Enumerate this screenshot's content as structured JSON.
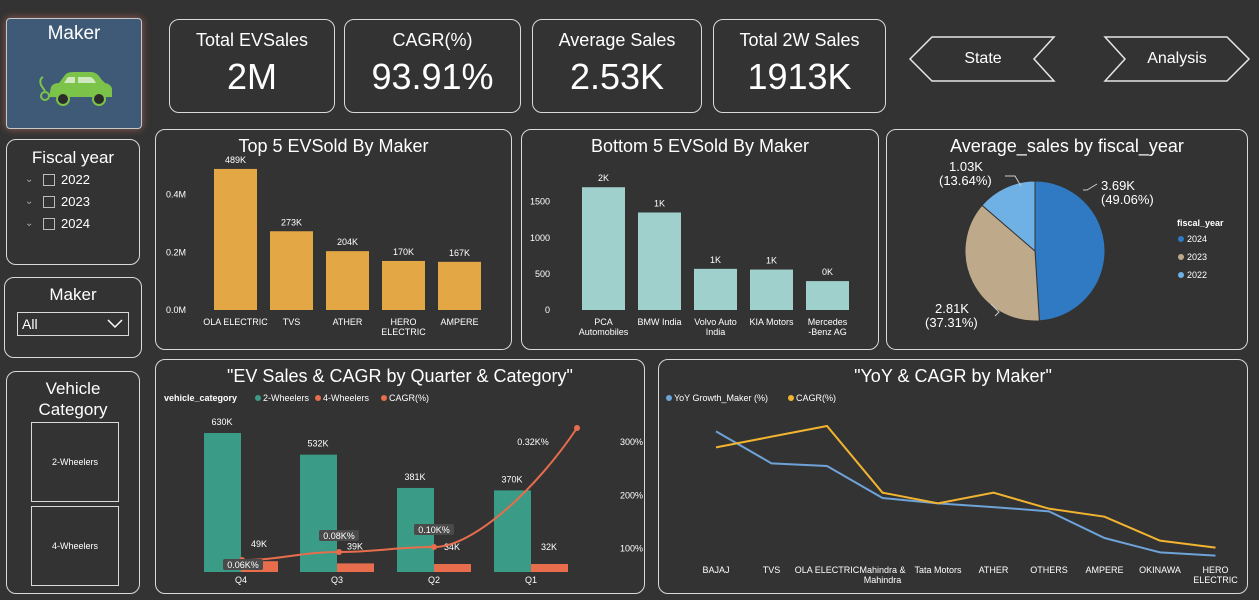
{
  "sidebar": {
    "maker_card_title": "Maker",
    "fiscal_year_title": "Fiscal year",
    "fiscal_years": [
      "2022",
      "2023",
      "2024"
    ],
    "maker_filter_title": "Maker",
    "maker_filter_value": "All",
    "vehicle_category_title": "Vehicle Category",
    "vehicle_categories": [
      "2-Wheelers",
      "4-Wheelers"
    ]
  },
  "kpis": [
    {
      "label": "Total EVSales",
      "value": "2M"
    },
    {
      "label": "CAGR(%)",
      "value": "93.91%"
    },
    {
      "label": "Average Sales",
      "value": "2.53K"
    },
    {
      "label": "Total 2W Sales",
      "value": "1913K"
    }
  ],
  "nav": {
    "state_label": "State",
    "analysis_label": "Analysis"
  },
  "colors": {
    "gold": "#e3a746",
    "teal": "#a0d0cc",
    "green": "#3a9b86",
    "orange": "#e86d4c",
    "blue": "#2f7ac2",
    "tan": "#bfa98b",
    "lightblue": "#6fb1e4",
    "lineblue": "#6ea3d8",
    "lineyellow": "#f2b430"
  },
  "chart_data": [
    {
      "type": "bar",
      "title": "Top 5 EVSold By Maker",
      "categories": [
        "OLA ELECTRIC",
        "TVS",
        "ATHER",
        "HERO ELECTRIC",
        "AMPERE"
      ],
      "values": [
        489000,
        273000,
        204000,
        170000,
        167000
      ],
      "data_labels": [
        "489K",
        "273K",
        "204K",
        "170K",
        "167K"
      ],
      "yticks": [
        "0.0M",
        "0.2M",
        "0.4M"
      ],
      "ylim": [
        0,
        520000
      ]
    },
    {
      "type": "bar",
      "title": "Bottom 5 EVSold By Maker",
      "categories": [
        "PCA Automobiles",
        "BMW India",
        "Volvo Auto India",
        "KIA Motors",
        "Mercedes -Benz AG"
      ],
      "values": [
        1700,
        1350,
        570,
        560,
        400
      ],
      "data_labels": [
        "2K",
        "1K",
        "1K",
        "1K",
        "0K"
      ],
      "yticks": [
        "0",
        "500",
        "1000",
        "1500"
      ],
      "ylim": [
        0,
        1800
      ]
    },
    {
      "type": "pie",
      "title": "Average_sales by fiscal_year",
      "legend_title": "fiscal_year",
      "slices": [
        {
          "label": "2024",
          "value": 3.69,
          "text": "3.69K",
          "pct": "(49.06%)"
        },
        {
          "label": "2023",
          "value": 2.81,
          "text": "2.81K",
          "pct": "(37.31%)"
        },
        {
          "label": "2022",
          "value": 1.03,
          "text": "1.03K",
          "pct": "(13.64%)"
        }
      ]
    },
    {
      "type": "bar",
      "title": "\"EV Sales & CAGR by Quarter & Category\"",
      "legend_title": "vehicle_category",
      "categories": [
        "Q4",
        "Q3",
        "Q2",
        "Q1"
      ],
      "series": [
        {
          "name": "2-Wheelers",
          "values": [
            630000,
            532000,
            381000,
            370000
          ],
          "labels": [
            "630K",
            "532K",
            "381K",
            "370K"
          ]
        },
        {
          "name": "4-Wheelers",
          "values": [
            49000,
            39000,
            34000,
            32000
          ],
          "labels": [
            "49K",
            "39K",
            "34K",
            "32K"
          ]
        },
        {
          "name": "CAGR(%)",
          "values": [
            0.06,
            0.08,
            0.1,
            0.32
          ],
          "labels": [
            "0.06K%",
            "0.08K%",
            "0.10K%",
            "0.32K%"
          ]
        }
      ],
      "ylim": [
        0,
        680000
      ]
    },
    {
      "type": "line",
      "title": "\"YoY & CAGR by Maker\"",
      "categories": [
        "BAJAJ",
        "TVS",
        "OLA ELECTRIC",
        "Mahindra & Mahindra",
        "Tata Motors",
        "ATHER",
        "OTHERS",
        "AMPERE",
        "OKINAWA",
        "HERO ELECTRIC"
      ],
      "series": [
        {
          "name": "YoY Growth_Maker (%)",
          "values": [
            320,
            260,
            255,
            195,
            185,
            178,
            170,
            120,
            93,
            87
          ]
        },
        {
          "name": "CAGR(%)",
          "values": [
            290,
            310,
            330,
            205,
            185,
            205,
            175,
            160,
            115,
            102
          ]
        }
      ],
      "yticks": [
        "100%",
        "200%",
        "300%"
      ],
      "ylim": [
        60,
        360
      ]
    }
  ]
}
